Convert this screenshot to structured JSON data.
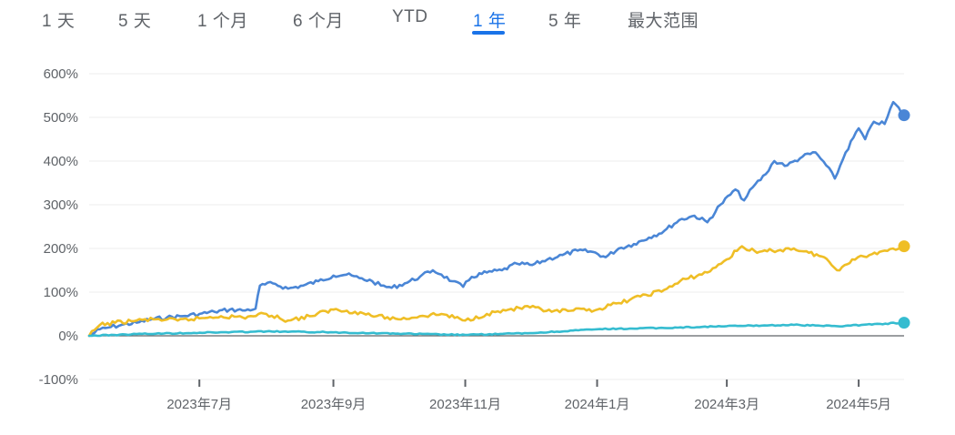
{
  "tabs": [
    {
      "label": "1 天",
      "active": false
    },
    {
      "label": "5 天",
      "active": false
    },
    {
      "label": "1 个月",
      "active": false
    },
    {
      "label": "6 个月",
      "active": false
    },
    {
      "label": "YTD",
      "active": false
    },
    {
      "label": "1 年",
      "active": true
    },
    {
      "label": "5 年",
      "active": false
    },
    {
      "label": "最大范围",
      "active": false
    }
  ],
  "colors": {
    "accent": "#1a73e8",
    "series_blue": "#4a86d6",
    "series_yellow": "#efbe26",
    "series_cyan": "#35bcd0",
    "grid": "#eeeeee",
    "zero_line": "#5f6368"
  },
  "chart_data": {
    "type": "line",
    "title": "",
    "xlabel": "",
    "ylabel": "",
    "x_range": [
      "2023-05-10",
      "2024-05-21"
    ],
    "ylim": [
      -100,
      600
    ],
    "y_ticks": [
      -100,
      0,
      100,
      200,
      300,
      400,
      500,
      600
    ],
    "y_tick_labels": [
      "-100%",
      "0%",
      "100%",
      "200%",
      "300%",
      "400%",
      "500%",
      "600%"
    ],
    "x_ticks": [
      "2023-06-30",
      "2023-08-31",
      "2023-10-31",
      "2023-12-31",
      "2024-02-29",
      "2024-04-30"
    ],
    "x_tick_labels": [
      "2023年7月",
      "2023年9月",
      "2023年11月",
      "2024年1月",
      "2024年3月",
      "2024年5月"
    ],
    "grid": true,
    "series": [
      {
        "color": "#4a86d6",
        "points": [
          [
            "2023-05-10",
            0
          ],
          [
            "2023-05-15",
            15
          ],
          [
            "2023-05-20",
            20
          ],
          [
            "2023-05-25",
            25
          ],
          [
            "2023-06-01",
            30
          ],
          [
            "2023-06-08",
            38
          ],
          [
            "2023-06-15",
            42
          ],
          [
            "2023-06-22",
            45
          ],
          [
            "2023-06-30",
            50
          ],
          [
            "2023-07-07",
            55
          ],
          [
            "2023-07-14",
            60
          ],
          [
            "2023-07-20",
            58
          ],
          [
            "2023-07-26",
            62
          ],
          [
            "2023-07-28",
            115
          ],
          [
            "2023-08-03",
            120
          ],
          [
            "2023-08-10",
            108
          ],
          [
            "2023-08-17",
            115
          ],
          [
            "2023-08-24",
            125
          ],
          [
            "2023-08-31",
            138
          ],
          [
            "2023-09-06",
            140
          ],
          [
            "2023-09-12",
            132
          ],
          [
            "2023-09-18",
            125
          ],
          [
            "2023-09-22",
            115
          ],
          [
            "2023-09-27",
            110
          ],
          [
            "2023-10-03",
            120
          ],
          [
            "2023-10-10",
            135
          ],
          [
            "2023-10-16",
            150
          ],
          [
            "2023-10-20",
            140
          ],
          [
            "2023-10-25",
            125
          ],
          [
            "2023-10-30",
            112
          ],
          [
            "2023-11-03",
            135
          ],
          [
            "2023-11-10",
            145
          ],
          [
            "2023-11-17",
            150
          ],
          [
            "2023-11-24",
            165
          ],
          [
            "2023-12-01",
            162
          ],
          [
            "2023-12-08",
            175
          ],
          [
            "2023-12-15",
            185
          ],
          [
            "2023-12-22",
            195
          ],
          [
            "2023-12-29",
            192
          ],
          [
            "2024-01-04",
            180
          ],
          [
            "2024-01-10",
            200
          ],
          [
            "2024-01-17",
            210
          ],
          [
            "2024-01-24",
            225
          ],
          [
            "2024-01-31",
            240
          ],
          [
            "2024-02-07",
            265
          ],
          [
            "2024-02-14",
            275
          ],
          [
            "2024-02-20",
            260
          ],
          [
            "2024-02-26",
            300
          ],
          [
            "2024-03-04",
            335
          ],
          [
            "2024-03-08",
            310
          ],
          [
            "2024-03-12",
            340
          ],
          [
            "2024-03-18",
            370
          ],
          [
            "2024-03-22",
            400
          ],
          [
            "2024-03-28",
            390
          ],
          [
            "2024-04-04",
            410
          ],
          [
            "2024-04-10",
            420
          ],
          [
            "2024-04-15",
            390
          ],
          [
            "2024-04-19",
            360
          ],
          [
            "2024-04-24",
            420
          ],
          [
            "2024-04-30",
            475
          ],
          [
            "2024-05-03",
            450
          ],
          [
            "2024-05-07",
            490
          ],
          [
            "2024-05-12",
            485
          ],
          [
            "2024-05-16",
            535
          ],
          [
            "2024-05-21",
            505
          ]
        ]
      },
      {
        "color": "#efbe26",
        "points": [
          [
            "2023-05-10",
            0
          ],
          [
            "2023-05-15",
            25
          ],
          [
            "2023-05-22",
            30
          ],
          [
            "2023-06-01",
            35
          ],
          [
            "2023-06-10",
            38
          ],
          [
            "2023-06-20",
            35
          ],
          [
            "2023-06-30",
            40
          ],
          [
            "2023-07-10",
            45
          ],
          [
            "2023-07-20",
            42
          ],
          [
            "2023-07-31",
            50
          ],
          [
            "2023-08-10",
            35
          ],
          [
            "2023-08-20",
            45
          ],
          [
            "2023-08-31",
            60
          ],
          [
            "2023-09-10",
            55
          ],
          [
            "2023-09-20",
            45
          ],
          [
            "2023-09-30",
            38
          ],
          [
            "2023-10-10",
            45
          ],
          [
            "2023-10-20",
            50
          ],
          [
            "2023-10-31",
            35
          ],
          [
            "2023-11-10",
            50
          ],
          [
            "2023-11-20",
            60
          ],
          [
            "2023-11-30",
            65
          ],
          [
            "2023-12-10",
            55
          ],
          [
            "2023-12-20",
            58
          ],
          [
            "2023-12-31",
            60
          ],
          [
            "2024-01-10",
            75
          ],
          [
            "2024-01-20",
            90
          ],
          [
            "2024-01-31",
            105
          ],
          [
            "2024-02-10",
            130
          ],
          [
            "2024-02-20",
            145
          ],
          [
            "2024-02-29",
            175
          ],
          [
            "2024-03-07",
            205
          ],
          [
            "2024-03-14",
            190
          ],
          [
            "2024-03-21",
            195
          ],
          [
            "2024-03-31",
            200
          ],
          [
            "2024-04-07",
            190
          ],
          [
            "2024-04-14",
            180
          ],
          [
            "2024-04-20",
            150
          ],
          [
            "2024-04-27",
            175
          ],
          [
            "2024-05-05",
            185
          ],
          [
            "2024-05-12",
            195
          ],
          [
            "2024-05-21",
            205
          ]
        ]
      },
      {
        "color": "#35bcd0",
        "points": [
          [
            "2023-05-10",
            0
          ],
          [
            "2023-06-01",
            4
          ],
          [
            "2023-06-30",
            7
          ],
          [
            "2023-07-31",
            10
          ],
          [
            "2023-08-31",
            8
          ],
          [
            "2023-09-30",
            5
          ],
          [
            "2023-10-31",
            2
          ],
          [
            "2023-11-30",
            6
          ],
          [
            "2023-12-31",
            15
          ],
          [
            "2024-01-31",
            18
          ],
          [
            "2024-02-29",
            22
          ],
          [
            "2024-03-31",
            25
          ],
          [
            "2024-04-20",
            22
          ],
          [
            "2024-05-21",
            30
          ]
        ]
      }
    ]
  }
}
